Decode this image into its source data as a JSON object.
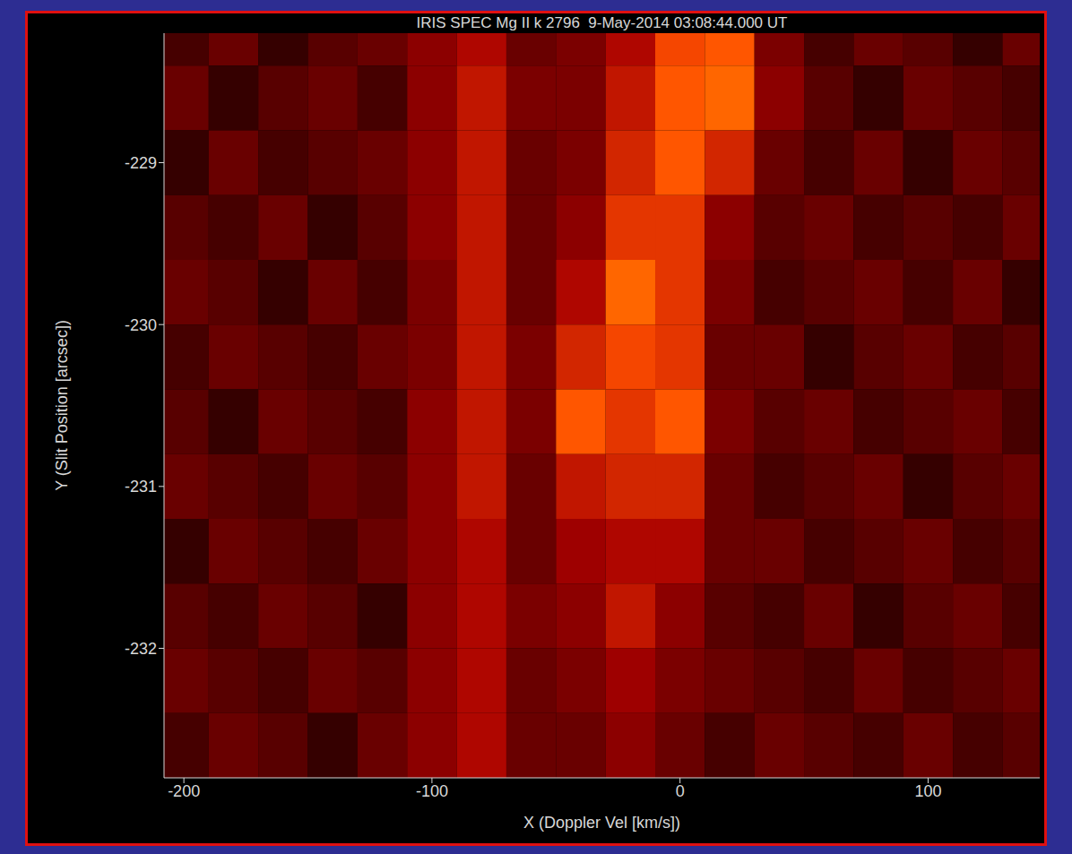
{
  "chart_data": {
    "type": "heatmap",
    "title": "IRIS SPEC Mg II k 2796  9-May-2014 03:08:44.000 UT",
    "x_label": "X (Doppler Vel [km/s])",
    "y_label": "Y (Slit Position [arcsec])",
    "xlim": [
      -208,
      145
    ],
    "xticks": [
      -200,
      -100,
      0,
      100
    ],
    "ylim": [
      -232.8,
      -228.2
    ],
    "yticks": [
      -232,
      -231,
      -230,
      -229
    ],
    "cells": {
      "x_edges": [
        -210,
        -190,
        -170,
        -150,
        -130,
        -110,
        -90,
        -70,
        -50,
        -30,
        -10,
        10,
        30,
        50,
        70,
        90,
        110,
        130,
        150
      ],
      "y_edges": [
        -228.0,
        -228.4,
        -228.8,
        -229.2,
        -229.6,
        -230.0,
        -230.4,
        -230.8,
        -231.2,
        -231.6,
        -232.0,
        -232.4,
        -232.8
      ],
      "values": [
        [
          0.2,
          0.3,
          0.15,
          0.25,
          0.3,
          0.4,
          0.5,
          0.3,
          0.35,
          0.5,
          0.7,
          0.75,
          0.35,
          0.2,
          0.3,
          0.25,
          0.15,
          0.3
        ],
        [
          0.3,
          0.15,
          0.25,
          0.3,
          0.2,
          0.4,
          0.55,
          0.35,
          0.35,
          0.55,
          0.75,
          0.8,
          0.4,
          0.25,
          0.15,
          0.3,
          0.25,
          0.2
        ],
        [
          0.15,
          0.3,
          0.2,
          0.25,
          0.3,
          0.4,
          0.55,
          0.3,
          0.35,
          0.6,
          0.75,
          0.6,
          0.3,
          0.2,
          0.3,
          0.15,
          0.3,
          0.25
        ],
        [
          0.25,
          0.2,
          0.3,
          0.15,
          0.25,
          0.4,
          0.55,
          0.3,
          0.4,
          0.65,
          0.65,
          0.4,
          0.25,
          0.3,
          0.2,
          0.25,
          0.2,
          0.3
        ],
        [
          0.3,
          0.25,
          0.15,
          0.3,
          0.2,
          0.35,
          0.55,
          0.3,
          0.5,
          0.8,
          0.65,
          0.35,
          0.2,
          0.25,
          0.3,
          0.2,
          0.3,
          0.15
        ],
        [
          0.2,
          0.3,
          0.25,
          0.2,
          0.3,
          0.35,
          0.55,
          0.35,
          0.6,
          0.7,
          0.65,
          0.3,
          0.3,
          0.15,
          0.25,
          0.3,
          0.2,
          0.25
        ],
        [
          0.25,
          0.15,
          0.3,
          0.25,
          0.2,
          0.4,
          0.55,
          0.35,
          0.75,
          0.65,
          0.75,
          0.35,
          0.25,
          0.3,
          0.2,
          0.25,
          0.3,
          0.2
        ],
        [
          0.3,
          0.25,
          0.2,
          0.3,
          0.25,
          0.4,
          0.55,
          0.3,
          0.55,
          0.6,
          0.6,
          0.3,
          0.2,
          0.25,
          0.3,
          0.15,
          0.25,
          0.3
        ],
        [
          0.15,
          0.3,
          0.25,
          0.2,
          0.3,
          0.4,
          0.5,
          0.3,
          0.45,
          0.5,
          0.5,
          0.3,
          0.3,
          0.2,
          0.25,
          0.3,
          0.2,
          0.25
        ],
        [
          0.25,
          0.2,
          0.3,
          0.25,
          0.15,
          0.4,
          0.5,
          0.35,
          0.4,
          0.55,
          0.4,
          0.25,
          0.2,
          0.3,
          0.15,
          0.25,
          0.3,
          0.2
        ],
        [
          0.3,
          0.25,
          0.2,
          0.3,
          0.25,
          0.4,
          0.5,
          0.3,
          0.35,
          0.45,
          0.35,
          0.3,
          0.25,
          0.2,
          0.3,
          0.2,
          0.25,
          0.3
        ],
        [
          0.2,
          0.3,
          0.25,
          0.15,
          0.3,
          0.4,
          0.5,
          0.3,
          0.3,
          0.4,
          0.3,
          0.2,
          0.3,
          0.25,
          0.2,
          0.3,
          0.2,
          0.25
        ]
      ]
    }
  }
}
